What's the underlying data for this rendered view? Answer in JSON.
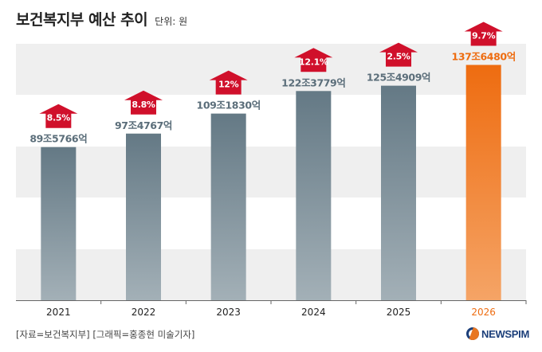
{
  "title": "보건복지부 예산 추이",
  "unit": "단위: 원",
  "source": "[자료=보건복지부] [그래픽=홍종현 미술기자]",
  "logo": "NEWSPIM",
  "logo_icon": "newspim-logo-icon",
  "colors": {
    "bar_normal_top": "#647985",
    "bar_normal_bottom": "#a3b0b7",
    "bar_highlight_top": "#ee6c10",
    "bar_highlight_bottom": "#f5a466",
    "label_normal": "#5b6e7a",
    "label_highlight": "#ee6c10",
    "arrow": "#d0102b",
    "band": "#efefef"
  },
  "chart_data": {
    "type": "bar",
    "categories": [
      "2021",
      "2022",
      "2023",
      "2024",
      "2025",
      "2026"
    ],
    "values": [
      89.5766,
      97.4767,
      109.183,
      122.3779,
      125.4909,
      137.648
    ],
    "value_labels": [
      "89조5766억",
      "97조4767억",
      "109조1830억",
      "122조3779억",
      "125조4909억",
      "137조6480억"
    ],
    "growth_labels": [
      "8.5%",
      "8.8%",
      "12%",
      "12.1%",
      "2.5%",
      "9.7%"
    ],
    "highlight_index": 5,
    "ylim": [
      0,
      150
    ],
    "grid": "bands",
    "xlabel": "",
    "ylabel": ""
  }
}
